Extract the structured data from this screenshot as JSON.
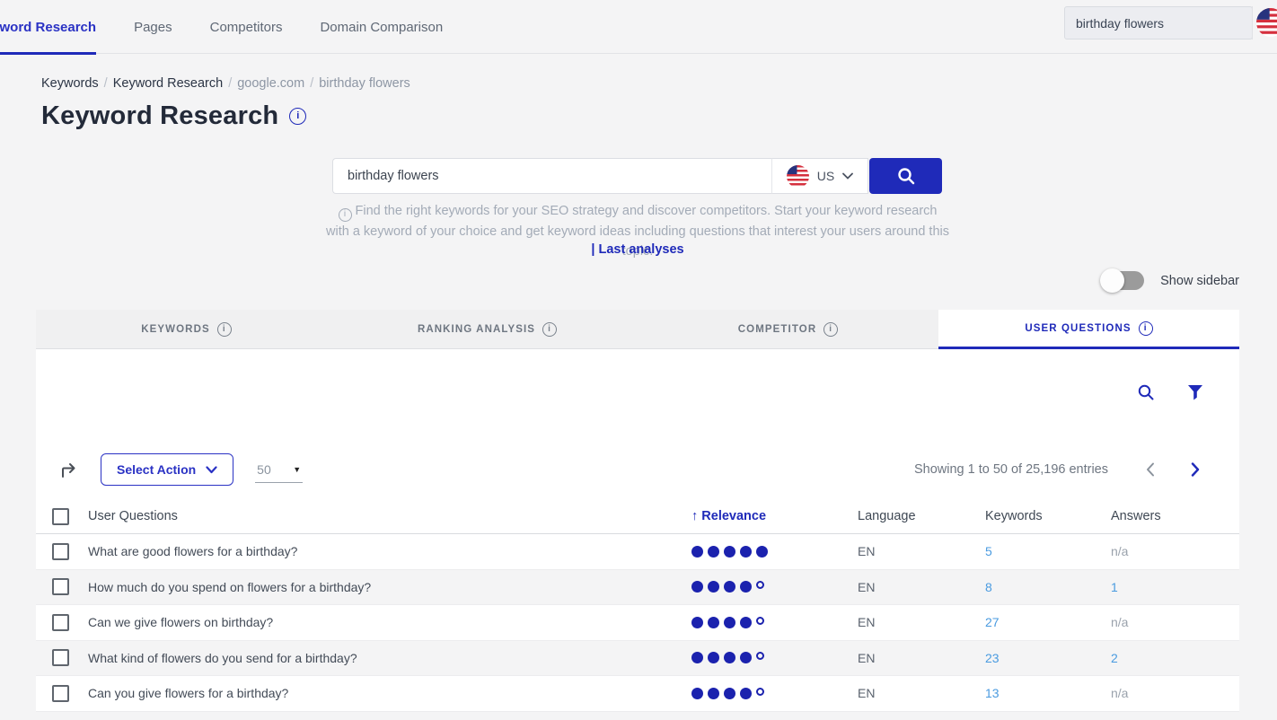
{
  "colors": {
    "primary_blue": "#1F2AB9",
    "link_light_blue": "#4A9BE0",
    "dot_blue": "#1B22AE",
    "muted_gray": "#9AA2AC"
  },
  "topnav": {
    "items": [
      {
        "label": "Keyword Research",
        "active": true
      },
      {
        "label": "Pages",
        "active": false
      },
      {
        "label": "Competitors",
        "active": false
      },
      {
        "label": "Domain Comparison",
        "active": false
      }
    ],
    "search_value": "birthday flowers",
    "flag": "us-flag"
  },
  "breadcrumb": {
    "items": [
      "Keywords",
      "Keyword Research",
      "google.com",
      "birthday flowers"
    ]
  },
  "page": {
    "title": "Keyword Research"
  },
  "search_panel": {
    "input_value": "birthday flowers",
    "country_code": "US",
    "description": "Find the right keywords for your SEO strategy and discover competitors. Start your keyword research with a keyword of your choice and get keyword ideas including questions that interest your users around this topic.",
    "last_analyses_label": "| Last analyses"
  },
  "sidebar_toggle": {
    "label": "Show sidebar",
    "state": "off"
  },
  "tabs": [
    {
      "label": "KEYWORDS",
      "active": false
    },
    {
      "label": "RANKING ANALYSIS",
      "active": false
    },
    {
      "label": "COMPETITOR",
      "active": false
    },
    {
      "label": "USER QUESTIONS",
      "active": true
    }
  ],
  "toolbar": {
    "select_action_label": "Select Action",
    "page_size": "50",
    "entries_text": "Showing 1 to 50 of 25,196 entries"
  },
  "table": {
    "headers": {
      "question": "User Questions",
      "relevance": "Relevance",
      "sort_arrow": "↑",
      "language": "Language",
      "keywords": "Keywords",
      "answers": "Answers"
    },
    "rows": [
      {
        "question": "What are good flowers for a birthday?",
        "relevance": {
          "filled": 5,
          "outline": 0
        },
        "language": "EN",
        "keywords": "5",
        "answers": "n/a"
      },
      {
        "question": "How much do you spend on flowers for a birthday?",
        "relevance": {
          "filled": 4,
          "outline": 1
        },
        "language": "EN",
        "keywords": "8",
        "answers": "1"
      },
      {
        "question": "Can we give flowers on birthday?",
        "relevance": {
          "filled": 4,
          "outline": 1
        },
        "language": "EN",
        "keywords": "27",
        "answers": "n/a"
      },
      {
        "question": "What kind of flowers do you send for a birthday?",
        "relevance": {
          "filled": 4,
          "outline": 1
        },
        "language": "EN",
        "keywords": "23",
        "answers": "2"
      },
      {
        "question": "Can you give flowers for a birthday?",
        "relevance": {
          "filled": 4,
          "outline": 1
        },
        "language": "EN",
        "keywords": "13",
        "answers": "n/a"
      }
    ]
  }
}
